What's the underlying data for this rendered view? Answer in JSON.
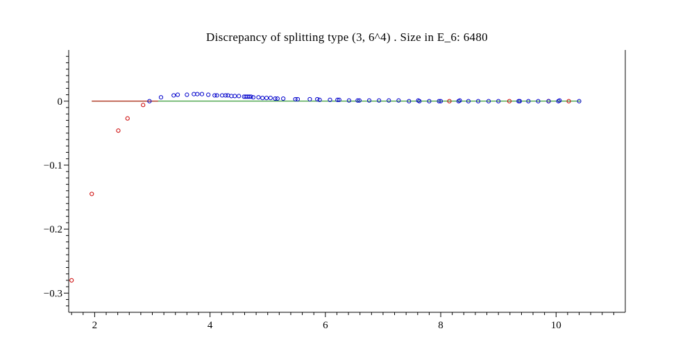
{
  "chart_data": {
    "type": "scatter",
    "title": "Discrepancy  of  splitting  type  (3,  6^4)  .   Size  in  E_6:  6480",
    "xlabel": "",
    "ylabel": "",
    "xlim": [
      1.55,
      11.2
    ],
    "ylim": [
      -0.33,
      0.08
    ],
    "x_ticks": [
      2,
      4,
      6,
      8,
      10
    ],
    "y_ticks": [
      0,
      -0.1,
      -0.2,
      -0.3
    ],
    "x_tick_labels": [
      "2",
      "4",
      "6",
      "8",
      "10"
    ],
    "y_tick_labels": [
      "0",
      "−0.1",
      "−0.2",
      "−0.3"
    ],
    "grid": false,
    "colors": {
      "red": "#cc0000",
      "blue": "#0000cc",
      "zero_line": "#00cc00",
      "step_line": "#cc0000"
    },
    "reference_lines": [
      {
        "type": "horizontal",
        "y": 0,
        "x_range": [
          1.95,
          10.42
        ],
        "color": "green"
      },
      {
        "type": "horizontal",
        "y": 0,
        "x_range": [
          1.95,
          3.1
        ],
        "color": "red"
      }
    ],
    "series": [
      {
        "color": "red",
        "x": [
          1.6,
          1.95,
          2.41,
          2.57,
          2.84,
          8.15,
          9.19,
          9.87,
          10.22
        ],
        "y": [
          -0.28,
          -0.145,
          -0.046,
          -0.027,
          -0.006,
          0.0,
          0.0,
          0.0,
          0.0
        ]
      },
      {
        "color": "blue",
        "x": [
          2.95,
          3.15,
          3.37,
          3.44,
          3.6,
          3.72,
          3.78,
          3.86,
          3.97,
          4.08,
          4.12,
          4.21,
          4.27,
          4.31,
          4.37,
          4.43,
          4.5,
          4.59,
          4.62,
          4.65,
          4.68,
          4.71,
          4.75,
          4.84,
          4.91,
          4.98,
          5.05,
          5.13,
          5.17,
          5.27,
          5.48,
          5.52,
          5.73,
          5.86,
          5.9,
          6.08,
          6.21,
          6.24,
          6.41,
          6.56,
          6.59,
          6.76,
          6.93,
          7.1,
          7.27,
          7.45,
          7.61,
          7.63,
          7.8,
          7.97,
          8.0,
          8.31,
          8.33,
          8.48,
          8.65,
          8.83,
          9.0,
          9.35,
          9.37,
          9.52,
          9.69,
          9.87,
          10.04,
          10.06,
          10.4
        ],
        "y": [
          0.0,
          0.006,
          0.009,
          0.01,
          0.01,
          0.011,
          0.011,
          0.011,
          0.01,
          0.009,
          0.009,
          0.009,
          0.009,
          0.009,
          0.008,
          0.008,
          0.008,
          0.007,
          0.007,
          0.007,
          0.007,
          0.007,
          0.006,
          0.006,
          0.005,
          0.005,
          0.005,
          0.004,
          0.004,
          0.004,
          0.003,
          0.003,
          0.003,
          0.003,
          0.002,
          0.002,
          0.002,
          0.002,
          0.001,
          0.001,
          0.001,
          0.001,
          0.001,
          0.001,
          0.001,
          0.0,
          0.001,
          0.0,
          0.0,
          0.0,
          0.0,
          0.0,
          0.001,
          0.0,
          0.0,
          0.0,
          0.0,
          0.0,
          0.0,
          0.0,
          0.0,
          0.0,
          0.0,
          0.001,
          0.0
        ]
      }
    ]
  }
}
